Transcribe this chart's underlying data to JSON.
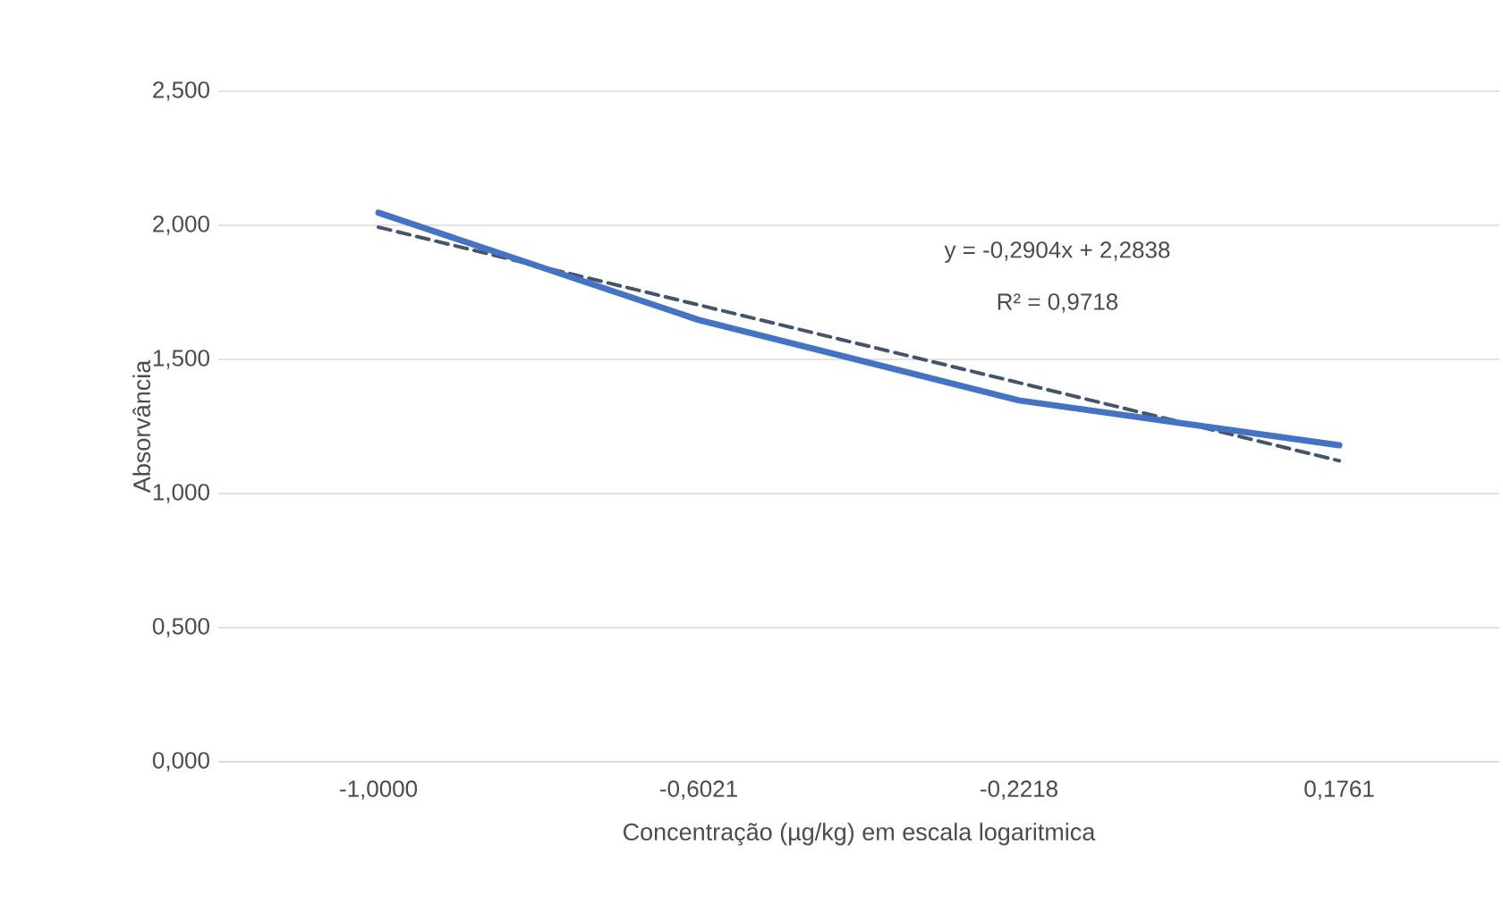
{
  "chart_data": {
    "type": "line",
    "xlabel": "Concentração (µg/kg) em escala logaritmica",
    "ylabel": "Absorvância",
    "categories": [
      "-1,0000",
      "-0,6021",
      "-0,2218",
      "0,1761"
    ],
    "series": [
      {
        "color": "#4472c4",
        "values": [
          2.047,
          1.647,
          1.347,
          1.18
        ],
        "line_style": "solid"
      },
      {
        "color": "#44546a",
        "values": [
          1.993,
          1.703,
          1.413,
          1.122
        ],
        "line_style": "dashed"
      }
    ],
    "annotations": [
      "y = -0,2904x + 2,2838",
      "R² = 0,9718"
    ],
    "ylim": [
      0,
      2.5
    ],
    "yticks": [
      {
        "value": 0,
        "label": "0,000"
      },
      {
        "value": 0.5,
        "label": "0,500"
      },
      {
        "value": 1,
        "label": "1,000"
      },
      {
        "value": 1.5,
        "label": "1,500"
      },
      {
        "value": 2,
        "label": "2,000"
      },
      {
        "value": 2.5,
        "label": "2,500"
      }
    ],
    "grid": "y"
  }
}
